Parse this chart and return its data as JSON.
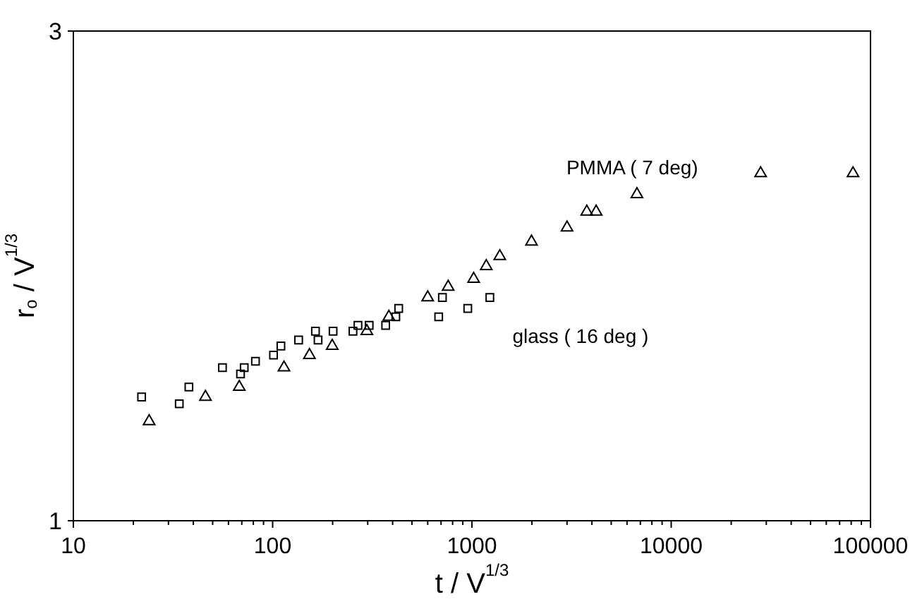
{
  "chart_data": {
    "type": "scatter",
    "xlabel": "t / V$^{1/3}$",
    "ylabel": "r$_{o}$ / V$^{1/3}$",
    "log": "xy",
    "xlim": [
      10,
      100000
    ],
    "ylim": [
      1,
      3
    ],
    "xticks": [
      10,
      {
        "value": 20,
        "label": null
      },
      {
        "value": 30,
        "label": null
      },
      {
        "value": 40,
        "label": null
      },
      {
        "value": 50,
        "label": null
      },
      {
        "value": 60,
        "label": null
      },
      {
        "value": 70,
        "label": null
      },
      {
        "value": 80,
        "label": null
      },
      {
        "value": 90,
        "label": null
      },
      100,
      {
        "value": 200,
        "label": null
      },
      {
        "value": 300,
        "label": null
      },
      {
        "value": 400,
        "label": null
      },
      {
        "value": 500,
        "label": null
      },
      {
        "value": 600,
        "label": null
      },
      {
        "value": 700,
        "label": null
      },
      {
        "value": 800,
        "label": null
      },
      {
        "value": 900,
        "label": null
      },
      1000,
      {
        "value": 2000,
        "label": null
      },
      {
        "value": 3000,
        "label": null
      },
      {
        "value": 4000,
        "label": null
      },
      {
        "value": 5000,
        "label": null
      },
      {
        "value": 6000,
        "label": null
      },
      {
        "value": 7000,
        "label": null
      },
      {
        "value": 8000,
        "label": null
      },
      {
        "value": 9000,
        "label": null
      },
      10000,
      {
        "value": 20000,
        "label": null
      },
      {
        "value": 30000,
        "label": null
      },
      {
        "value": 40000,
        "label": null
      },
      {
        "value": 50000,
        "label": null
      },
      {
        "value": 60000,
        "label": null
      },
      {
        "value": 70000,
        "label": null
      },
      {
        "value": 80000,
        "label": null
      },
      {
        "value": 90000,
        "label": null
      },
      100000
    ],
    "yticks": [
      1,
      3
    ],
    "grid": false,
    "series": [
      {
        "name": "glass ( 16 deg )",
        "color": "#000000",
        "marker": "square",
        "x": [
          22,
          34,
          38,
          56,
          69,
          72,
          82,
          101,
          110,
          135,
          164,
          169,
          201,
          253,
          268,
          305,
          369,
          415,
          429,
          681,
          711,
          953,
          1230
        ],
        "values": [
          1.32,
          1.3,
          1.35,
          1.41,
          1.39,
          1.41,
          1.43,
          1.45,
          1.48,
          1.5,
          1.53,
          1.5,
          1.53,
          1.53,
          1.55,
          1.55,
          1.55,
          1.58,
          1.61,
          1.58,
          1.65,
          1.61,
          1.65
        ]
      },
      {
        "name": "PMMA ( 7 deg)",
        "color": "#000000",
        "marker": "triangle",
        "x": [
          24,
          46,
          68,
          114,
          153,
          199,
          297,
          383,
          600,
          760,
          1020,
          1180,
          1380,
          1990,
          3000,
          3770,
          4200,
          6730,
          28100,
          81700
        ],
        "values": [
          1.25,
          1.32,
          1.35,
          1.41,
          1.45,
          1.48,
          1.53,
          1.58,
          1.65,
          1.69,
          1.72,
          1.77,
          1.81,
          1.87,
          1.93,
          2.0,
          2.0,
          2.08,
          2.18,
          2.18
        ]
      }
    ]
  }
}
